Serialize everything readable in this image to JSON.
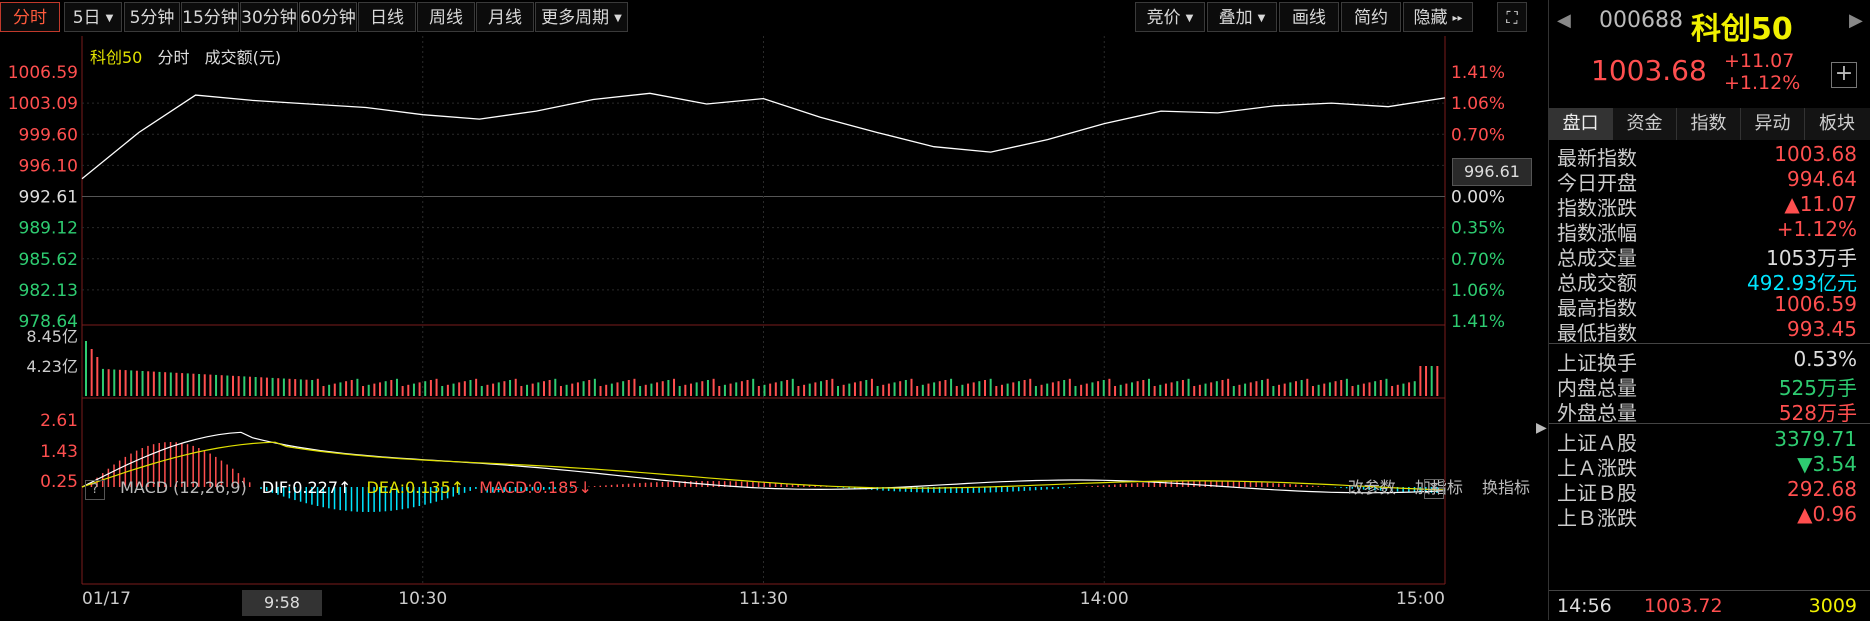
{
  "toolbar": {
    "period_tabs": [
      "分时",
      "5日",
      "5分钟",
      "15分钟",
      "30分钟",
      "60分钟",
      "日线",
      "周线",
      "月线",
      "更多周期"
    ],
    "right_buttons": [
      "竞价",
      "叠加",
      "画线",
      "简约",
      "隐藏"
    ]
  },
  "legend": {
    "name": "科创50",
    "mode": "分时",
    "metric": "成交额(元)"
  },
  "price_axis": [
    "1006.59",
    "1003.09",
    "999.60",
    "996.10",
    "992.61",
    "989.12",
    "985.62",
    "982.13",
    "978.64"
  ],
  "pct_axis": [
    "1.41%",
    "1.06%",
    "0.70%",
    "0.35%",
    "0.00%",
    "0.35%",
    "0.70%",
    "1.06%",
    "1.41%"
  ],
  "volume_axis": [
    "8.45亿",
    "4.23亿"
  ],
  "macd": {
    "label": "MACD (12,26,9)",
    "dif": "DIF:0.227↑",
    "dea": "DEA:0.135↑",
    "macd": "MACD:0.185↓",
    "axis": [
      "2.61",
      "1.43",
      "0.25"
    ],
    "buttons": [
      "改参数",
      "加指标",
      "换指标"
    ],
    "close": "✕",
    "help": "?"
  },
  "time_axis": [
    "01/17",
    "10:30",
    "11:30",
    "14:00",
    "15:00"
  ],
  "time_highlight": "9:58",
  "price_tag": "996.61",
  "colors": {
    "up": "#ff4f4f",
    "down": "#2ecc71",
    "price": "#ffffff",
    "avg": "#e0e000",
    "cyan": "#00e5ff"
  },
  "chart_data": {
    "type": "line",
    "title": "",
    "xlabel": "",
    "ylabel": "",
    "ylim": [
      978.64,
      1006.59
    ],
    "prev_close": 992.61,
    "x": [
      "09:30",
      "09:40",
      "09:50",
      "10:00",
      "10:10",
      "10:20",
      "10:30",
      "10:40",
      "10:50",
      "11:00",
      "11:10",
      "11:20",
      "11:30",
      "13:10",
      "13:20",
      "13:30",
      "13:40",
      "13:50",
      "14:00",
      "14:10",
      "14:20",
      "14:30",
      "14:40",
      "14:50",
      "15:00"
    ],
    "series": [
      {
        "values": [
          994.6,
          999.8,
          1004.0,
          1003.4,
          1003.0,
          1002.6,
          1001.8,
          1001.3,
          1002.2,
          1003.5,
          1004.2,
          1003.0,
          1003.6,
          1001.5,
          999.8,
          998.2,
          997.6,
          999.0,
          1000.8,
          1002.2,
          1002.0,
          1002.8,
          1003.1,
          1002.7,
          1003.68
        ]
      }
    ]
  },
  "side": {
    "code": "000688",
    "name": "科创50",
    "price": "1003.68",
    "change": "+11.07",
    "change_pct": "+1.12%",
    "plus": "+",
    "tabs": [
      "盘口",
      "资金",
      "指数",
      "异动",
      "板块"
    ],
    "rows": [
      {
        "k": "最新指数",
        "v": "1003.68",
        "c": "#ff4f4f"
      },
      {
        "k": "今日开盘",
        "v": "994.64",
        "c": "#ff4f4f"
      },
      {
        "k": "指数涨跌",
        "v": "▲11.07",
        "c": "#ff4f4f"
      },
      {
        "k": "指数涨幅",
        "v": "+1.12%",
        "c": "#ff4f4f"
      },
      {
        "k": "总成交量",
        "v": "1053万手",
        "c": "#dddddd"
      },
      {
        "k": "总成交额",
        "v": "492.93亿元",
        "c": "#00e5ff"
      },
      {
        "k": "最高指数",
        "v": "1006.59",
        "c": "#ff4f4f"
      },
      {
        "k": "最低指数",
        "v": "993.45",
        "c": "#ff4f4f"
      },
      {
        "k": "上证换手",
        "v": "0.53%",
        "c": "#dddddd"
      },
      {
        "k": "内盘总量",
        "v": "525万手",
        "c": "#2ecc71"
      },
      {
        "k": "外盘总量",
        "v": "528万手",
        "c": "#ff4f4f"
      },
      {
        "k": "上证Ａ股",
        "v": "3379.71",
        "c": "#2ecc71"
      },
      {
        "k": "上Ａ涨跌",
        "v": "▼3.54",
        "c": "#2ecc71"
      },
      {
        "k": "上证Ｂ股",
        "v": "292.68",
        "c": "#ff4f4f"
      },
      {
        "k": "上Ｂ涨跌",
        "v": "▲0.96",
        "c": "#ff4f4f"
      }
    ],
    "bottom": {
      "time": "14:56",
      "price": "1003.72",
      "vol": "3009"
    }
  }
}
